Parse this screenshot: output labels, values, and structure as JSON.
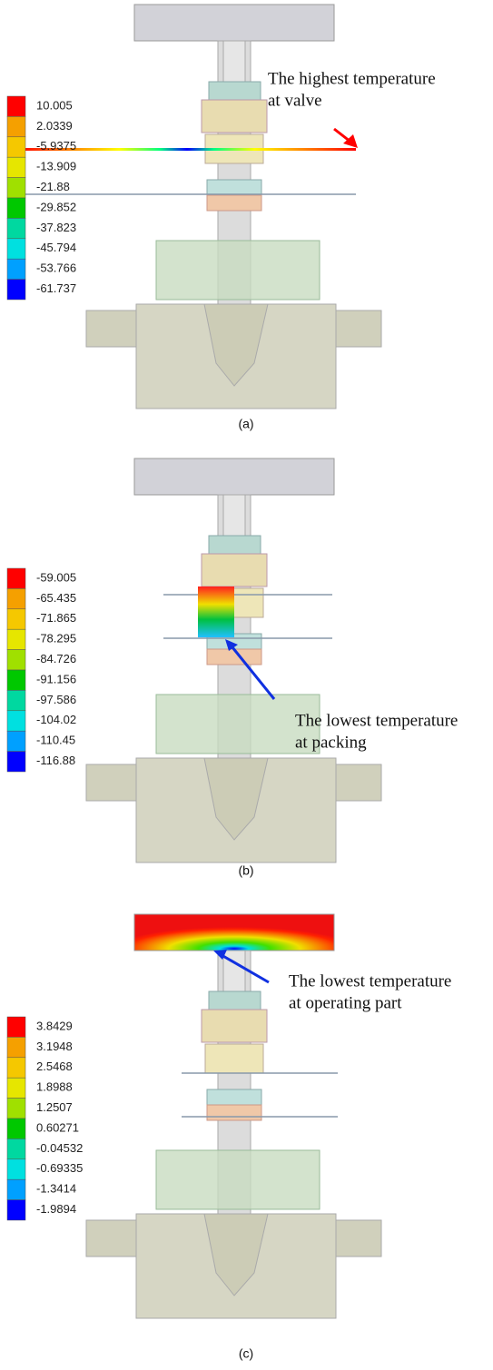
{
  "panels": [
    {
      "caption": "(a)",
      "legend": [
        "10.005",
        "2.0339",
        "-5.9375",
        "-13.909",
        "-21.88",
        "-29.852",
        "-37.823",
        "-45.794",
        "-53.766",
        "-61.737"
      ],
      "annotation": [
        "The highest temperature",
        "at valve"
      ]
    },
    {
      "caption": "(b)",
      "legend": [
        "-59.005",
        "-65.435",
        "-71.865",
        "-78.295",
        "-84.726",
        "-91.156",
        "-97.586",
        "-104.02",
        "-110.45",
        "-116.88"
      ],
      "annotation": [
        "The lowest temperature",
        "at packing"
      ]
    },
    {
      "caption": "(c)",
      "legend": [
        "3.8429",
        "3.1948",
        "2.5468",
        "1.8988",
        "1.2507",
        "0.60271",
        "-0.04532",
        "-0.69335",
        "-1.3414",
        "-1.9894"
      ],
      "annotation": [
        "The lowest temperature",
        "at operating part"
      ]
    }
  ]
}
